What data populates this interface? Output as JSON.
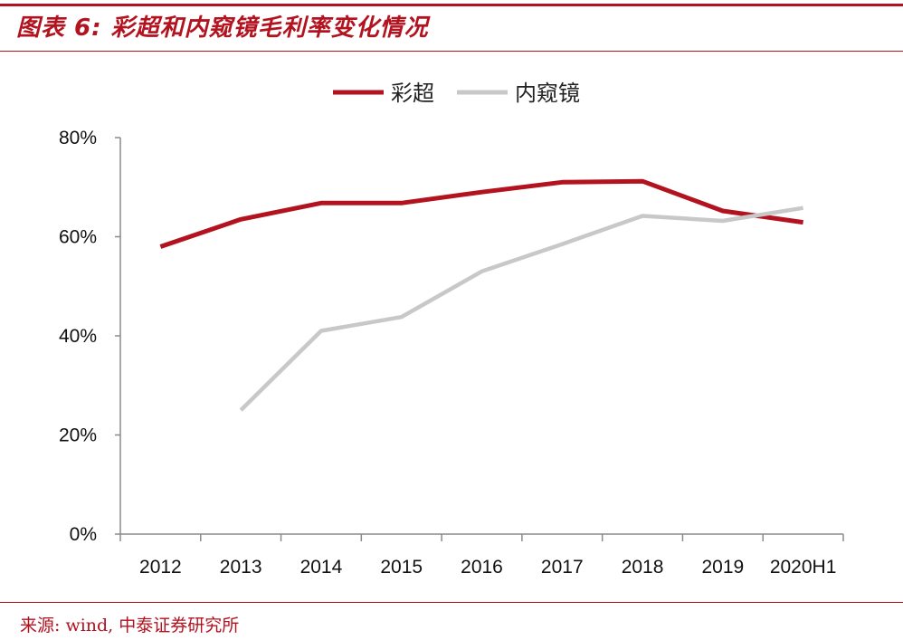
{
  "header": {
    "title": "图表 6:  彩超和内窥镜毛利率变化情况"
  },
  "footer": {
    "source": "来源: wind, 中泰证券研究所"
  },
  "colors": {
    "accent": "#b3121f",
    "series_1": "#b3121f",
    "series_2": "#c8c8c8"
  },
  "chart_data": {
    "type": "line",
    "title": "",
    "xlabel": "",
    "ylabel": "",
    "categories": [
      "2012",
      "2013",
      "2014",
      "2015",
      "2016",
      "2017",
      "2018",
      "2019",
      "2020H1"
    ],
    "y_ticks": [
      "0%",
      "20%",
      "40%",
      "60%",
      "80%"
    ],
    "ylim": [
      0,
      0.8
    ],
    "grid": false,
    "legend_position": "top-center",
    "series": [
      {
        "name": "彩超",
        "color": "#b3121f",
        "values": [
          0.58,
          0.635,
          0.668,
          0.668,
          0.69,
          0.71,
          0.712,
          0.652,
          0.629
        ]
      },
      {
        "name": "内窥镜",
        "color": "#c8c8c8",
        "values": [
          null,
          0.25,
          0.41,
          0.438,
          0.53,
          0.585,
          0.642,
          0.632,
          0.658
        ]
      }
    ]
  }
}
